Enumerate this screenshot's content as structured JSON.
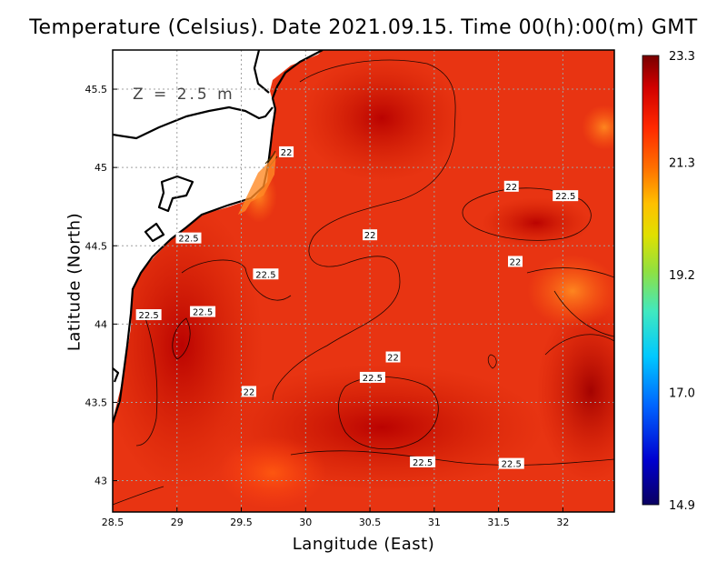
{
  "title": "Temperature (Celsius). Date 2021.09.15. Time 00(h):00(m)  GMT",
  "depth_label": "Z = 2.5 m",
  "chart_data": {
    "type": "heatmap",
    "variable": "Temperature (Celsius)",
    "date": "2021.09.15",
    "time": "00(h):00(m) GMT",
    "xlabel": "Langitude (East)",
    "ylabel": "Latitude (North)",
    "xlim": [
      28.5,
      32.4
    ],
    "ylim": [
      42.8,
      45.75
    ],
    "x_ticks": [
      "28.5",
      "29",
      "29.5",
      "30",
      "30.5",
      "31",
      "31.5",
      "32"
    ],
    "y_ticks": [
      "43",
      "43.5",
      "44",
      "44.5",
      "45",
      "45.5"
    ],
    "grid": true,
    "colorbar": {
      "min": 14.9,
      "max": 23.3,
      "tick_labels": [
        "23.3",
        "21.3",
        "19.2",
        "17.0",
        "14.9"
      ],
      "colors": [
        "#08004f",
        "#0000c8",
        "#0060ff",
        "#00c8ff",
        "#40e8c0",
        "#90e040",
        "#e0e000",
        "#ffc000",
        "#ff7000",
        "#ff2800",
        "#d00000",
        "#7a0000"
      ]
    },
    "contour_levels": [
      22,
      22.5
    ],
    "contour_labels": [
      {
        "text": "22",
        "lon": 29.85,
        "lat": 45.1
      },
      {
        "text": "22",
        "lon": 31.6,
        "lat": 44.88
      },
      {
        "text": "22.5",
        "lon": 32.02,
        "lat": 44.82
      },
      {
        "text": "22",
        "lon": 30.5,
        "lat": 44.57
      },
      {
        "text": "22.5",
        "lon": 29.09,
        "lat": 44.55
      },
      {
        "text": "22",
        "lon": 31.63,
        "lat": 44.4
      },
      {
        "text": "22.5",
        "lon": 29.69,
        "lat": 44.32
      },
      {
        "text": "22.5",
        "lon": 28.78,
        "lat": 44.06
      },
      {
        "text": "22.5",
        "lon": 29.2,
        "lat": 44.08
      },
      {
        "text": "22",
        "lon": 30.68,
        "lat": 43.79
      },
      {
        "text": "22.5",
        "lon": 30.52,
        "lat": 43.66
      },
      {
        "text": "22",
        "lon": 29.56,
        "lat": 43.57
      },
      {
        "text": "22.5",
        "lon": 30.91,
        "lat": 43.12
      },
      {
        "text": "22.5",
        "lon": 31.6,
        "lat": 43.11
      }
    ]
  }
}
